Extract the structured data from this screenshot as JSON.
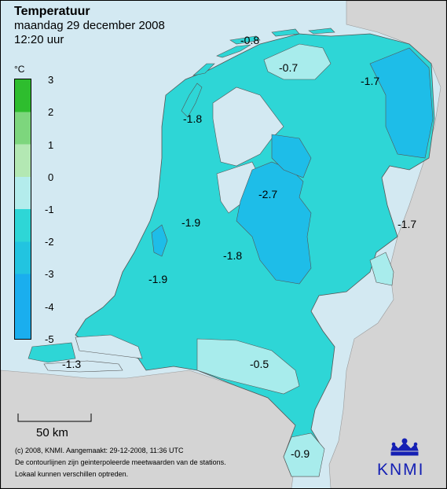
{
  "header": {
    "title": "Temperatuur",
    "date": "maandag 29 december 2008",
    "time": "12:20 uur"
  },
  "legend": {
    "unit": "°C",
    "ticks": [
      "3",
      "2",
      "1",
      "0",
      "-1",
      "-2",
      "-3",
      "-4",
      "-5"
    ],
    "colors": [
      "#2ebd2e",
      "#7dd67d",
      "#b3e8b3",
      "#b3ecec",
      "#2ed6d6",
      "#22c4e0",
      "#1aaeee"
    ]
  },
  "map": {
    "sea_color": "#d3e9f2",
    "foreign_land_color": "#d4d4d4",
    "land_cold_color": "#2ed6d6",
    "land_colder_color": "#1ebde8",
    "land_mild_color": "#a8ecec",
    "values": [
      "-0.8",
      "-0.7",
      "-1.7",
      "-1.8",
      "-2.7",
      "-1.9",
      "-1.8",
      "-1.7",
      "-1.9",
      "-1.3",
      "-0.5",
      "-0.9"
    ]
  },
  "scale": {
    "label": "50 km"
  },
  "footer": {
    "line1": "(c) 2008, KNMI. Aangemaakt: 29-12-2008, 11:36 UTC",
    "line2": "De contourlijnen zijn geinterpoleerde meetwaarden van de stations.",
    "line3": "Lokaal kunnen verschillen optreden."
  },
  "logo": {
    "text": "KNMI",
    "color": "#1520b4"
  }
}
